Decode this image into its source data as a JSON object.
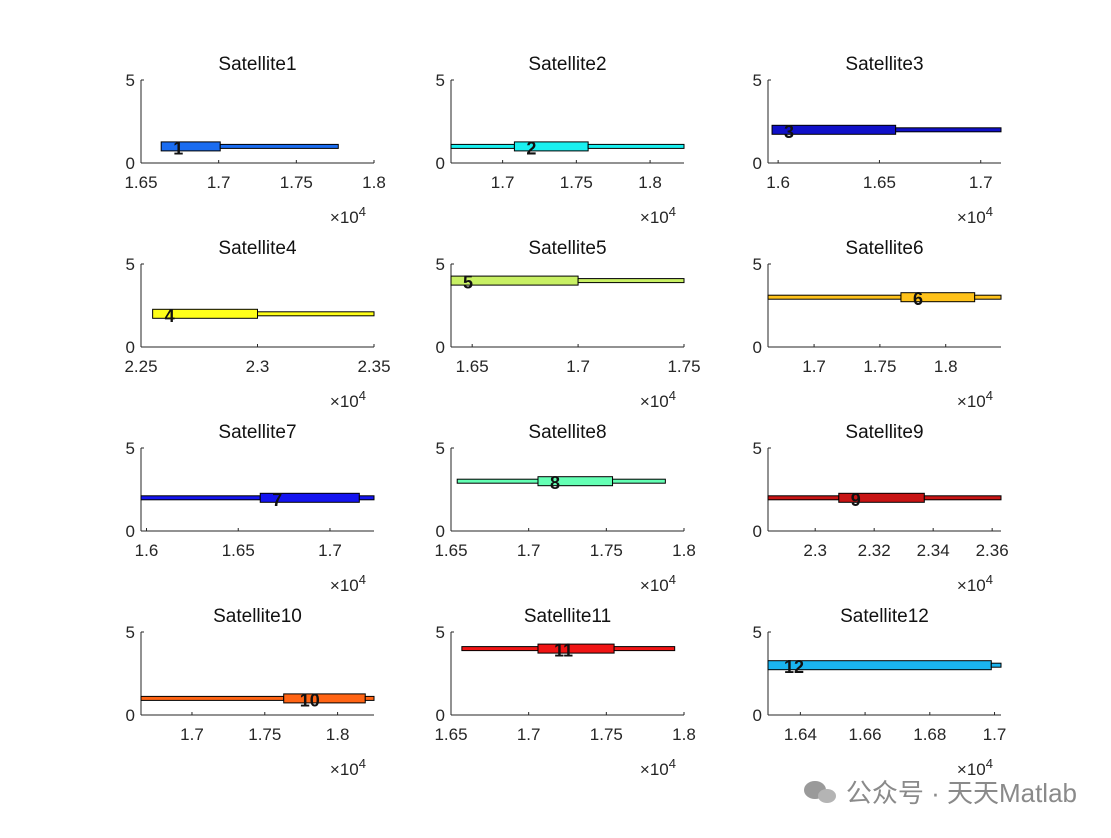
{
  "watermark": "公众号 · 天天Matlab",
  "chart_data": [
    {
      "type": "bar",
      "title": "Satellite1",
      "xlim": [
        16500,
        18000
      ],
      "ylim": [
        0,
        5
      ],
      "xticks": [
        "1.65",
        "1.7",
        "1.75",
        "1.8"
      ],
      "xtick_values": [
        16500,
        17000,
        17500,
        18000
      ],
      "yticks": [
        "0",
        "5"
      ],
      "exponent": "×10^4",
      "segments": [
        {
          "start": 16630,
          "end": 17010,
          "width": "thick"
        },
        {
          "start": 17010,
          "end": 17770,
          "width": "thin"
        }
      ],
      "level": 1,
      "label": "1",
      "color": "#1a6cf0"
    },
    {
      "type": "bar",
      "title": "Satellite2",
      "xlim": [
        16650,
        18230
      ],
      "ylim": [
        0,
        5
      ],
      "xticks": [
        "1.7",
        "1.75",
        "1.8"
      ],
      "xtick_values": [
        17000,
        17500,
        18000
      ],
      "yticks": [
        "0",
        "5"
      ],
      "exponent": "×10^4",
      "segments": [
        {
          "start": 16650,
          "end": 17080,
          "width": "thin"
        },
        {
          "start": 17080,
          "end": 17580,
          "width": "thick"
        },
        {
          "start": 17580,
          "end": 18230,
          "width": "thin"
        }
      ],
      "level": 1,
      "label": "2",
      "color": "#19f0f0"
    },
    {
      "type": "bar",
      "title": "Satellite3",
      "xlim": [
        15950,
        17100
      ],
      "ylim": [
        0,
        5
      ],
      "xticks": [
        "1.6",
        "1.65",
        "1.7"
      ],
      "xtick_values": [
        16000,
        16500,
        17000
      ],
      "yticks": [
        "0",
        "5"
      ],
      "exponent": "×10^4",
      "segments": [
        {
          "start": 15970,
          "end": 16580,
          "width": "thick"
        },
        {
          "start": 16580,
          "end": 17100,
          "width": "thin"
        }
      ],
      "level": 2,
      "label": "3",
      "color": "#1010c8"
    },
    {
      "type": "bar",
      "title": "Satellite4",
      "xlim": [
        22500,
        23500
      ],
      "ylim": [
        0,
        5
      ],
      "xticks": [
        "2.25",
        "2.3",
        "2.35"
      ],
      "xtick_values": [
        22500,
        23000,
        23500
      ],
      "yticks": [
        "0",
        "5"
      ],
      "exponent": "×10^4",
      "segments": [
        {
          "start": 22550,
          "end": 23000,
          "width": "thick"
        },
        {
          "start": 23000,
          "end": 23500,
          "width": "thin"
        }
      ],
      "level": 2,
      "label": "4",
      "color": "#ffff1a"
    },
    {
      "type": "bar",
      "title": "Satellite5",
      "xlim": [
        16400,
        17500
      ],
      "ylim": [
        0,
        5
      ],
      "xticks": [
        "1.65",
        "1.7",
        "1.75"
      ],
      "xtick_values": [
        16500,
        17000,
        17500
      ],
      "yticks": [
        "0",
        "5"
      ],
      "exponent": "×10^4",
      "segments": [
        {
          "start": 16400,
          "end": 17000,
          "width": "thick"
        },
        {
          "start": 17000,
          "end": 17500,
          "width": "thin"
        }
      ],
      "level": 4,
      "label": "5",
      "color": "#c8f064"
    },
    {
      "type": "bar",
      "title": "Satellite6",
      "xlim": [
        16650,
        18420
      ],
      "ylim": [
        0,
        5
      ],
      "xticks": [
        "1.7",
        "1.75",
        "1.8"
      ],
      "xtick_values": [
        17000,
        17500,
        18000
      ],
      "yticks": [
        "0",
        "5"
      ],
      "exponent": "×10^4",
      "segments": [
        {
          "start": 16650,
          "end": 17660,
          "width": "thin"
        },
        {
          "start": 17660,
          "end": 18220,
          "width": "thick"
        },
        {
          "start": 18220,
          "end": 18420,
          "width": "thin"
        }
      ],
      "level": 3,
      "label": "6",
      "color": "#ffc21a"
    },
    {
      "type": "bar",
      "title": "Satellite7",
      "xlim": [
        15970,
        17240
      ],
      "ylim": [
        0,
        5
      ],
      "xticks": [
        "1.6",
        "1.65",
        "1.7"
      ],
      "xtick_values": [
        16000,
        16500,
        17000
      ],
      "yticks": [
        "0",
        "5"
      ],
      "exponent": "×10^4",
      "segments": [
        {
          "start": 15970,
          "end": 16620,
          "width": "thin"
        },
        {
          "start": 16620,
          "end": 17160,
          "width": "thick"
        },
        {
          "start": 17160,
          "end": 17240,
          "width": "thin"
        }
      ],
      "level": 2,
      "label": "7",
      "color": "#1414f0"
    },
    {
      "type": "bar",
      "title": "Satellite8",
      "xlim": [
        16500,
        18000
      ],
      "ylim": [
        0,
        5
      ],
      "xticks": [
        "1.65",
        "1.7",
        "1.75",
        "1.8"
      ],
      "xtick_values": [
        16500,
        17000,
        17500,
        18000
      ],
      "yticks": [
        "0",
        "5"
      ],
      "exponent": "×10^4",
      "segments": [
        {
          "start": 16540,
          "end": 17060,
          "width": "thin"
        },
        {
          "start": 17060,
          "end": 17540,
          "width": "thick"
        },
        {
          "start": 17540,
          "end": 17880,
          "width": "thin"
        }
      ],
      "level": 3,
      "label": "8",
      "color": "#64ffb4"
    },
    {
      "type": "bar",
      "title": "Satellite9",
      "xlim": [
        22840,
        23630
      ],
      "ylim": [
        0,
        5
      ],
      "xticks": [
        "2.3",
        "2.32",
        "2.34",
        "2.36"
      ],
      "xtick_values": [
        23000,
        23200,
        23400,
        23600
      ],
      "yticks": [
        "0",
        "5"
      ],
      "exponent": "×10^4",
      "segments": [
        {
          "start": 22840,
          "end": 23080,
          "width": "thin"
        },
        {
          "start": 23080,
          "end": 23370,
          "width": "thick"
        },
        {
          "start": 23370,
          "end": 23630,
          "width": "thin"
        }
      ],
      "level": 2,
      "label": "9",
      "color": "#c81414"
    },
    {
      "type": "bar",
      "title": "Satellite10",
      "xlim": [
        16650,
        18250
      ],
      "ylim": [
        0,
        5
      ],
      "xticks": [
        "1.7",
        "1.75",
        "1.8"
      ],
      "xtick_values": [
        17000,
        17500,
        18000
      ],
      "yticks": [
        "0",
        "5"
      ],
      "exponent": "×10^4",
      "segments": [
        {
          "start": 16650,
          "end": 17630,
          "width": "thin"
        },
        {
          "start": 17630,
          "end": 18190,
          "width": "thick"
        },
        {
          "start": 18190,
          "end": 18250,
          "width": "thin"
        }
      ],
      "level": 1,
      "label": "10",
      "color": "#ff6414"
    },
    {
      "type": "bar",
      "title": "Satellite11",
      "xlim": [
        16500,
        18000
      ],
      "ylim": [
        0,
        5
      ],
      "xticks": [
        "1.65",
        "1.7",
        "1.75",
        "1.8"
      ],
      "xtick_values": [
        16500,
        17000,
        17500,
        18000
      ],
      "yticks": [
        "0",
        "5"
      ],
      "exponent": "×10^4",
      "segments": [
        {
          "start": 16570,
          "end": 17060,
          "width": "thin"
        },
        {
          "start": 17060,
          "end": 17550,
          "width": "thick"
        },
        {
          "start": 17550,
          "end": 17940,
          "width": "thin"
        }
      ],
      "level": 4,
      "label": "11",
      "color": "#f01414"
    },
    {
      "type": "bar",
      "title": "Satellite12",
      "xlim": [
        16300,
        17020
      ],
      "ylim": [
        0,
        5
      ],
      "xticks": [
        "1.64",
        "1.66",
        "1.68",
        "1.7"
      ],
      "xtick_values": [
        16400,
        16600,
        16800,
        17000
      ],
      "yticks": [
        "0",
        "5"
      ],
      "exponent": "×10^4",
      "segments": [
        {
          "start": 16300,
          "end": 16990,
          "width": "thick"
        },
        {
          "start": 16990,
          "end": 17020,
          "width": "thin"
        }
      ],
      "level": 3,
      "label": "12",
      "color": "#1ab4f0"
    }
  ]
}
